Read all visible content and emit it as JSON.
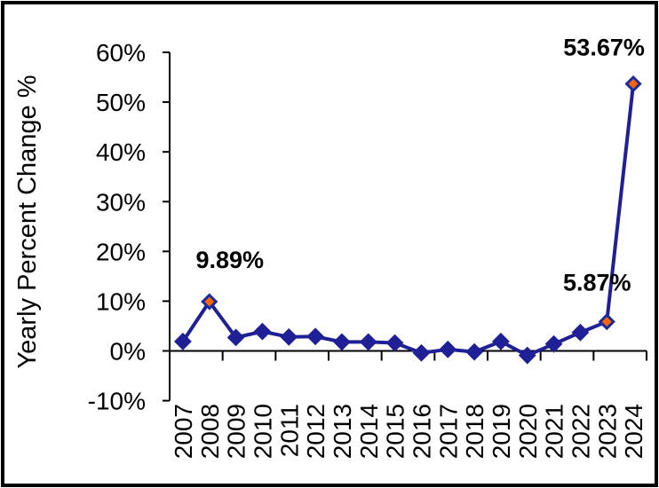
{
  "chart_data": {
    "type": "line",
    "title": "",
    "xlabel": "",
    "ylabel": "Yearly Percent Change %",
    "categories": [
      "2007",
      "2008",
      "2009",
      "2010",
      "2011",
      "2012",
      "2013",
      "2014",
      "2015",
      "2016",
      "2017",
      "2018",
      "2019",
      "2020",
      "2021",
      "2022",
      "2023",
      "2024"
    ],
    "series": [
      {
        "name": "Yearly Percent Change %",
        "values": [
          1.9,
          9.89,
          2.7,
          3.9,
          2.8,
          2.9,
          1.8,
          1.8,
          1.6,
          -0.4,
          0.3,
          -0.2,
          1.9,
          -0.9,
          1.4,
          3.7,
          5.87,
          53.67
        ]
      }
    ],
    "ylim": [
      -10,
      60
    ],
    "ytick_step": 10,
    "ytick_labels": [
      "60%",
      "50%",
      "40%",
      "30%",
      "20%",
      "10%",
      "0%",
      "-10%"
    ],
    "xtick_every_n_categories": 2,
    "grid": false,
    "legend_position": "none",
    "data_labels": [
      {
        "category": "2008",
        "text": "9.89%"
      },
      {
        "category": "2023",
        "text": "5.87%"
      },
      {
        "category": "2024",
        "text": "53.67%"
      }
    ],
    "highlighted_categories": [
      "2008",
      "2023",
      "2024"
    ],
    "colors": {
      "line": "#1F1F96",
      "marker_fill": "#1F1F96",
      "highlight_marker_fill": "#FF6600",
      "highlight_marker_stroke": "#1C2AA0",
      "axis": "#000000",
      "text": "#000000",
      "background": "#FFFFFF",
      "frame_border": "#000000"
    }
  }
}
